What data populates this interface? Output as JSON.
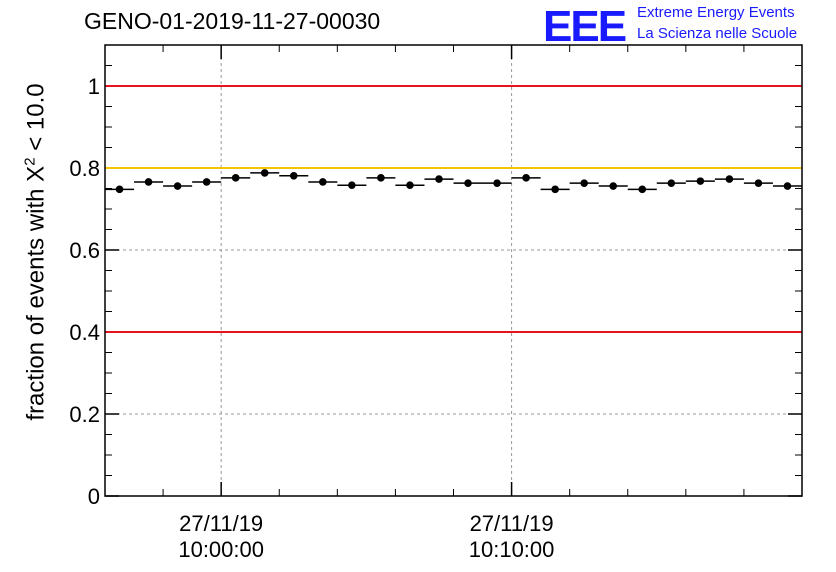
{
  "header": {
    "run_title": "GENO-01-2019-11-27-00030",
    "logo_mark": "EEE",
    "logo_line1": "Extreme Energy Events",
    "logo_line2": "La Scienza nelle Scuole"
  },
  "y_axis_title": {
    "prefix": "fraction of events with X",
    "superscript": "2",
    "suffix": " < 10.0"
  },
  "colors": {
    "limit_red": "#e8141b",
    "limit_yellow": "#f5c400",
    "grid": "#999999",
    "points": "#000000",
    "logo_blue": "#1a1aff"
  },
  "chart_data": {
    "type": "scatter",
    "title": "GENO-01-2019-11-27-00030",
    "xlabel": "",
    "ylabel": "fraction of events with X^2 < 10.0",
    "x_unit": "minutes after 27/11/19 10:00:00",
    "xlim": [
      -4,
      20
    ],
    "ylim": [
      0,
      1.1
    ],
    "yticks": [
      0,
      0.2,
      0.4,
      0.6,
      0.8,
      1
    ],
    "ytick_labels": [
      "0",
      "0.2",
      "0.4",
      "0.6",
      "0.8",
      "1"
    ],
    "xticks_major": [
      {
        "x": 0,
        "date": "27/11/19",
        "time": "10:00:00"
      },
      {
        "x": 10,
        "date": "27/11/19",
        "time": "10:10:00"
      }
    ],
    "xticks_minor": [
      -2,
      2,
      4,
      6,
      8,
      12,
      14,
      16,
      18
    ],
    "grid": true,
    "reference_lines": [
      {
        "y": 1.0,
        "color": "red"
      },
      {
        "y": 0.8,
        "color": "yellow"
      },
      {
        "y": 0.4,
        "color": "red"
      }
    ],
    "series": [
      {
        "name": "fraction",
        "bin_width": 1,
        "x": [
          -3.5,
          -2.5,
          -1.5,
          -0.5,
          0.5,
          1.5,
          2.5,
          3.5,
          4.5,
          5.5,
          6.5,
          7.5,
          8.5,
          9.5,
          10.5,
          11.5,
          12.5,
          13.5,
          14.5,
          15.5,
          16.5,
          17.5,
          18.5,
          19.5
        ],
        "values": [
          0.748,
          0.766,
          0.756,
          0.766,
          0.776,
          0.788,
          0.781,
          0.766,
          0.758,
          0.776,
          0.758,
          0.773,
          0.763,
          0.763,
          0.776,
          0.748,
          0.763,
          0.756,
          0.748,
          0.763,
          0.768,
          0.773,
          0.763,
          0.756
        ]
      }
    ]
  }
}
